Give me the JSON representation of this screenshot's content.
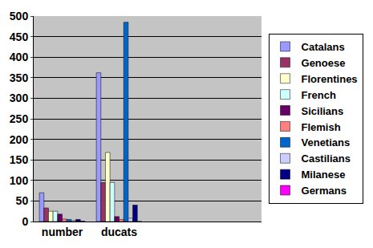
{
  "chart_data": {
    "type": "bar",
    "categories": [
      "number",
      "ducats",
      null,
      null
    ],
    "series": [
      {
        "name": "Catalans",
        "color": "#9999ff",
        "values": [
          70,
          362,
          null,
          null
        ]
      },
      {
        "name": "Genoese",
        "color": "#993366",
        "values": [
          33,
          95,
          null,
          null
        ]
      },
      {
        "name": "Florentines",
        "color": "#ffffcc",
        "values": [
          25,
          168,
          null,
          null
        ]
      },
      {
        "name": "French",
        "color": "#ccffff",
        "values": [
          25,
          95,
          null,
          null
        ]
      },
      {
        "name": "Sicilians",
        "color": "#660066",
        "values": [
          18,
          12,
          null,
          null
        ]
      },
      {
        "name": "Flemish",
        "color": "#ff8080",
        "values": [
          6,
          5,
          null,
          null
        ]
      },
      {
        "name": "Venetians",
        "color": "#0066cc",
        "values": [
          5,
          485,
          null,
          null
        ]
      },
      {
        "name": "Castilians",
        "color": "#ccccff",
        "values": [
          2,
          8,
          null,
          null
        ]
      },
      {
        "name": "Milanese",
        "color": "#000080",
        "values": [
          5,
          40,
          null,
          null
        ]
      },
      {
        "name": "Germans",
        "color": "#ff00ff",
        "values": [
          1,
          0,
          null,
          null
        ]
      }
    ],
    "ylim": [
      0,
      500
    ],
    "yticks": [
      0,
      50,
      100,
      150,
      200,
      250,
      300,
      350,
      400,
      450,
      500
    ],
    "grid": true,
    "legend": "right"
  }
}
